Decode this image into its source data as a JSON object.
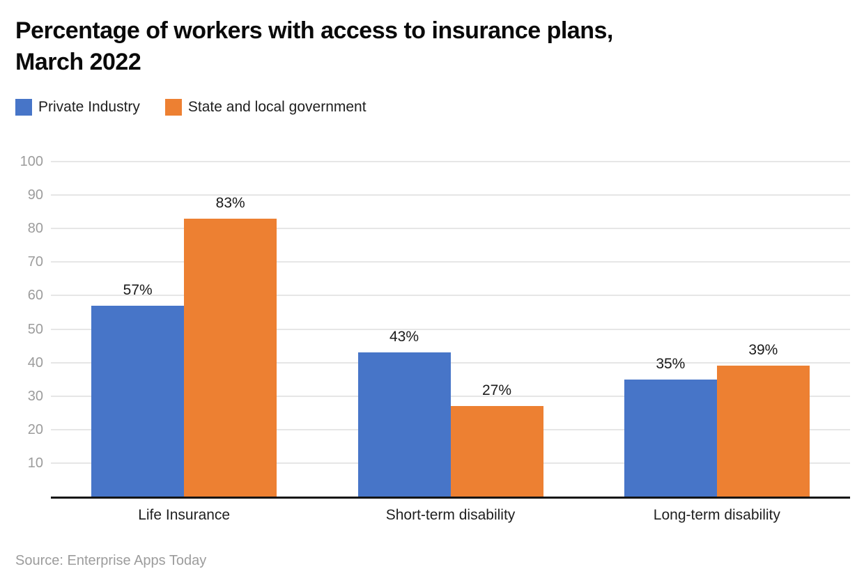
{
  "header": {
    "title_lines": {
      "line1": "Percentage of workers with access to insurance plans,",
      "line2": "March 2022"
    }
  },
  "legend": [
    {
      "label": "Private Industry",
      "color": "#4775C8"
    },
    {
      "label": "State and local government",
      "color": "#ED8032"
    }
  ],
  "chart_data": {
    "type": "bar",
    "title": "Percentage of workers with access to insurance plans, March 2022",
    "categories": [
      "Life Insurance",
      "Short-term disability",
      "Long-term disability"
    ],
    "series": [
      {
        "name": "Private Industry",
        "color": "#4775C8",
        "values": [
          57,
          43,
          35
        ]
      },
      {
        "name": "State and local government",
        "color": "#ED8032",
        "values": [
          83,
          27,
          39
        ]
      }
    ],
    "data_labels": [
      [
        "57%",
        "83%"
      ],
      [
        "43%",
        "27%"
      ],
      [
        "35%",
        "39%"
      ]
    ],
    "xlabel": "",
    "ylabel": "",
    "ylim": [
      0,
      100
    ],
    "yticks": [
      10,
      20,
      30,
      40,
      50,
      60,
      70,
      80,
      90,
      100
    ],
    "grid": true,
    "legend_position": "top",
    "colors": {
      "grid": "#e6e6e6",
      "axis": "#141414",
      "tick_text": "#9c9c9c"
    }
  },
  "footer": {
    "source": "Source: Enterprise Apps Today"
  }
}
